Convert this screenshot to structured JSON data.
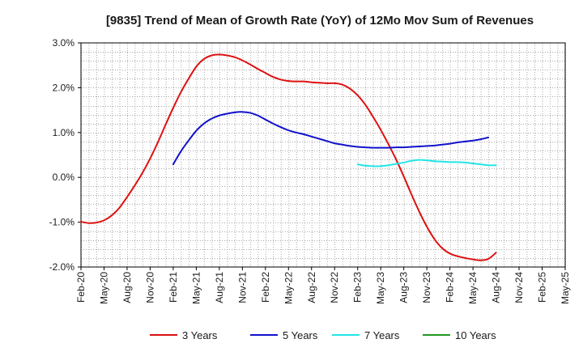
{
  "chart_data": {
    "type": "line",
    "title": "[9835]  Trend of Mean of Growth Rate (YoY) of 12Mo Mov Sum of Revenues",
    "xlabel": "",
    "ylabel": "",
    "ylim": [
      -2.0,
      3.0
    ],
    "yticks": [
      -2.0,
      -1.0,
      0.0,
      1.0,
      2.0,
      3.0
    ],
    "ytick_labels": [
      "-2.0%",
      "-1.0%",
      "0.0%",
      "1.0%",
      "2.0%",
      "3.0%"
    ],
    "x_index_range": [
      0,
      63
    ],
    "xticks": [
      0,
      3,
      6,
      9,
      12,
      15,
      18,
      21,
      24,
      27,
      30,
      33,
      36,
      39,
      42,
      45,
      48,
      51,
      54,
      57,
      60,
      63
    ],
    "xtick_labels": [
      "Feb-20",
      "May-20",
      "Aug-20",
      "Nov-20",
      "Feb-21",
      "May-21",
      "Aug-21",
      "Nov-21",
      "Feb-22",
      "May-22",
      "Aug-22",
      "Nov-22",
      "Feb-23",
      "May-23",
      "Aug-23",
      "Nov-23",
      "Feb-24",
      "May-24",
      "Aug-24",
      "Nov-24",
      "Feb-25",
      "May-25"
    ],
    "grid": true,
    "legend_position": "bottom",
    "series": [
      {
        "name": "3 Years",
        "color": "#dd1111",
        "start_index": 0,
        "values": [
          -0.99,
          -1.02,
          -1.01,
          -0.96,
          -0.85,
          -0.68,
          -0.44,
          -0.18,
          0.1,
          0.42,
          0.78,
          1.17,
          1.55,
          1.9,
          2.2,
          2.47,
          2.64,
          2.72,
          2.74,
          2.72,
          2.68,
          2.61,
          2.52,
          2.42,
          2.33,
          2.24,
          2.18,
          2.15,
          2.14,
          2.14,
          2.12,
          2.11,
          2.1,
          2.1,
          2.07,
          1.98,
          1.83,
          1.62,
          1.35,
          1.06,
          0.74,
          0.4,
          0.02,
          -0.38,
          -0.76,
          -1.1,
          -1.38,
          -1.58,
          -1.7,
          -1.76,
          -1.8,
          -1.83,
          -1.85,
          -1.82,
          -1.68
        ]
      },
      {
        "name": "5 Years",
        "color": "#1111cc",
        "start_index": 12,
        "values": [
          0.29,
          0.58,
          0.82,
          1.04,
          1.2,
          1.31,
          1.38,
          1.42,
          1.45,
          1.46,
          1.44,
          1.38,
          1.29,
          1.2,
          1.12,
          1.05,
          1.0,
          0.96,
          0.91,
          0.86,
          0.81,
          0.76,
          0.73,
          0.7,
          0.68,
          0.67,
          0.66,
          0.66,
          0.66,
          0.67,
          0.67,
          0.68,
          0.69,
          0.7,
          0.71,
          0.73,
          0.75,
          0.78,
          0.8,
          0.82,
          0.85,
          0.89
        ]
      },
      {
        "name": "7 Years",
        "color": "#22e5e5",
        "start_index": 36,
        "values": [
          0.29,
          0.26,
          0.25,
          0.25,
          0.27,
          0.3,
          0.33,
          0.37,
          0.39,
          0.38,
          0.36,
          0.35,
          0.34,
          0.34,
          0.33,
          0.31,
          0.29,
          0.27,
          0.27
        ]
      },
      {
        "name": "10 Years",
        "color": "#229922",
        "start_index": 0,
        "values": []
      }
    ]
  }
}
